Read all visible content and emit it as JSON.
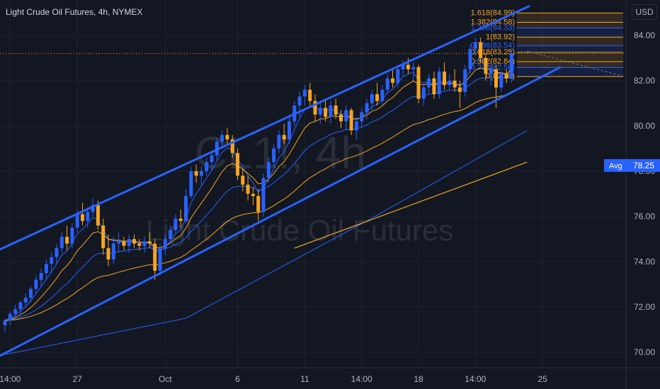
{
  "header": {
    "title": "Light Crude Oil Futures, 4h, NYMEX",
    "currency": "USD"
  },
  "watermark": {
    "symbol": "CL1!, 4h",
    "description": "Light Crude Oil Futures"
  },
  "colors": {
    "background": "#131722",
    "bull_candle": "#2962ff",
    "bear_candle": "#f5a623",
    "channel": "#2962ff",
    "ema_fast": "#2962ff",
    "ema_slow": "#f5a623",
    "fib_line": "#f5a623",
    "avg_label": "#2962ff"
  },
  "price_axis": {
    "ticks": [
      "84.00",
      "82.00",
      "80.00",
      "78.00",
      "76.00",
      "74.00",
      "72.00",
      "70.00"
    ],
    "avg_label": "Avg",
    "avg_value": "78.25"
  },
  "fib_levels": [
    {
      "label": "1.618(84.99)",
      "price": 84.99,
      "color": "#f5a623"
    },
    {
      "label": "1.382(84.58)",
      "price": 84.58,
      "color": "#f5a623"
    },
    {
      "label": "1.236(84.33)",
      "price": 84.33,
      "color": "#2962ff"
    },
    {
      "label": "1(83.92)",
      "price": 83.92,
      "color": "#f5a623"
    },
    {
      "label": "0.786(83.54)",
      "price": 83.54,
      "color": "#2962ff"
    },
    {
      "label": "0.618(83.25)",
      "price": 83.25,
      "color": "#f5a623"
    },
    {
      "label": "0.382(82.84)",
      "price": 82.84,
      "color": "#f5a623"
    },
    {
      "label": "0.236(82.58)",
      "price": 82.58,
      "color": "#2962ff"
    },
    {
      "label": "0(82.18)",
      "price": 82.18,
      "color": "#f5a623"
    }
  ],
  "chart_data": {
    "type": "candlestick",
    "title": "Light Crude Oil Futures, 4h, NYMEX",
    "ylim": [
      69.4,
      85.3
    ],
    "x_ticks": [
      {
        "label": "14:00",
        "index": 1
      },
      {
        "label": "27",
        "index": 14
      },
      {
        "label": "Oct",
        "index": 31
      },
      {
        "label": "6",
        "index": 45
      },
      {
        "label": "11",
        "index": 58
      },
      {
        "label": "14:00",
        "index": 69
      },
      {
        "label": "18",
        "index": 80
      },
      {
        "label": "14:00",
        "index": 91
      },
      {
        "label": "25",
        "index": 104
      }
    ],
    "candles": [
      [
        71.2,
        71.5,
        70.9,
        71.4
      ],
      [
        71.4,
        71.8,
        71.2,
        71.7
      ],
      [
        71.7,
        72.1,
        71.5,
        71.9
      ],
      [
        71.9,
        72.3,
        71.6,
        72.2
      ],
      [
        72.2,
        72.6,
        72.0,
        72.4
      ],
      [
        72.4,
        72.9,
        72.2,
        72.8
      ],
      [
        72.8,
        73.4,
        72.6,
        73.2
      ],
      [
        73.2,
        73.7,
        72.9,
        73.5
      ],
      [
        73.5,
        74.1,
        73.2,
        73.9
      ],
      [
        73.9,
        74.4,
        73.5,
        74.2
      ],
      [
        74.2,
        74.8,
        73.9,
        74.6
      ],
      [
        74.6,
        75.3,
        74.4,
        75.1
      ],
      [
        75.1,
        75.6,
        74.5,
        74.8
      ],
      [
        74.8,
        75.7,
        74.6,
        75.5
      ],
      [
        75.5,
        76.3,
        75.3,
        76.1
      ],
      [
        76.1,
        76.6,
        75.6,
        75.8
      ],
      [
        75.8,
        76.4,
        75.5,
        76.2
      ],
      [
        76.2,
        76.8,
        76.0,
        76.5
      ],
      [
        76.5,
        76.7,
        75.4,
        75.6
      ],
      [
        75.6,
        75.9,
        74.3,
        74.6
      ],
      [
        74.6,
        75.2,
        73.8,
        74.1
      ],
      [
        74.1,
        75.1,
        73.9,
        74.8
      ],
      [
        74.8,
        75.3,
        74.4,
        74.9
      ],
      [
        74.9,
        75.1,
        74.5,
        74.7
      ],
      [
        74.7,
        75.2,
        74.4,
        75.0
      ],
      [
        75.0,
        75.2,
        74.6,
        74.8
      ],
      [
        74.8,
        75.0,
        74.5,
        74.7
      ],
      [
        74.7,
        75.1,
        74.4,
        74.9
      ],
      [
        74.9,
        75.3,
        74.6,
        74.8
      ],
      [
        74.8,
        75.0,
        73.2,
        73.6
      ],
      [
        73.6,
        74.8,
        73.4,
        74.6
      ],
      [
        74.6,
        75.2,
        74.3,
        75.0
      ],
      [
        75.0,
        75.6,
        74.8,
        75.4
      ],
      [
        75.4,
        76.1,
        75.2,
        75.9
      ],
      [
        75.9,
        76.3,
        75.5,
        75.8
      ],
      [
        75.8,
        77.2,
        75.7,
        76.9
      ],
      [
        76.9,
        78.2,
        76.8,
        78.0
      ],
      [
        78.0,
        78.3,
        77.5,
        77.8
      ],
      [
        77.8,
        78.2,
        77.4,
        78.0
      ],
      [
        78.0,
        78.6,
        77.8,
        78.4
      ],
      [
        78.4,
        78.9,
        78.0,
        78.7
      ],
      [
        78.7,
        79.5,
        78.5,
        79.3
      ],
      [
        79.3,
        79.8,
        79.0,
        79.6
      ],
      [
        79.6,
        79.9,
        79.2,
        79.4
      ],
      [
        79.4,
        79.6,
        78.6,
        78.8
      ],
      [
        78.8,
        79.0,
        77.6,
        77.8
      ],
      [
        77.8,
        78.1,
        77.1,
        77.4
      ],
      [
        77.4,
        77.8,
        76.7,
        77.0
      ],
      [
        77.0,
        77.3,
        76.5,
        76.9
      ],
      [
        76.9,
        77.2,
        75.8,
        76.2
      ],
      [
        76.2,
        77.9,
        76.0,
        77.7
      ],
      [
        77.7,
        78.6,
        77.5,
        78.4
      ],
      [
        78.4,
        79.2,
        78.2,
        79.0
      ],
      [
        79.0,
        79.8,
        78.8,
        79.6
      ],
      [
        79.6,
        80.1,
        79.2,
        79.4
      ],
      [
        79.4,
        80.5,
        79.2,
        80.2
      ],
      [
        80.2,
        81.1,
        80.0,
        80.9
      ],
      [
        80.9,
        81.5,
        80.4,
        81.3
      ],
      [
        81.3,
        81.8,
        80.9,
        81.6
      ],
      [
        81.6,
        81.9,
        80.9,
        81.1
      ],
      [
        81.1,
        81.4,
        80.2,
        80.5
      ],
      [
        80.5,
        81.0,
        80.1,
        80.8
      ],
      [
        80.8,
        81.2,
        80.2,
        80.4
      ],
      [
        80.4,
        81.1,
        80.1,
        80.9
      ],
      [
        80.9,
        81.2,
        80.3,
        80.5
      ],
      [
        80.5,
        80.7,
        79.9,
        80.2
      ],
      [
        80.2,
        80.9,
        79.8,
        80.7
      ],
      [
        80.7,
        80.8,
        79.6,
        79.8
      ],
      [
        79.8,
        80.4,
        79.4,
        80.2
      ],
      [
        80.2,
        80.8,
        79.9,
        80.6
      ],
      [
        80.6,
        81.2,
        80.3,
        81.0
      ],
      [
        81.0,
        81.6,
        80.7,
        81.4
      ],
      [
        81.4,
        81.9,
        80.9,
        81.1
      ],
      [
        81.1,
        81.8,
        80.9,
        81.6
      ],
      [
        81.6,
        82.3,
        81.4,
        82.1
      ],
      [
        82.1,
        82.5,
        81.7,
        81.9
      ],
      [
        81.9,
        82.7,
        81.7,
        82.5
      ],
      [
        82.5,
        82.9,
        82.2,
        82.7
      ],
      [
        82.7,
        83.0,
        82.3,
        82.5
      ],
      [
        82.5,
        82.8,
        82.0,
        82.6
      ],
      [
        82.6,
        82.7,
        81.0,
        81.2
      ],
      [
        81.2,
        81.9,
        80.9,
        81.7
      ],
      [
        81.7,
        82.3,
        81.4,
        82.1
      ],
      [
        82.1,
        82.4,
        81.2,
        81.4
      ],
      [
        81.4,
        82.6,
        81.2,
        82.4
      ],
      [
        82.4,
        82.8,
        81.6,
        81.8
      ],
      [
        81.8,
        82.3,
        81.6,
        82.0
      ],
      [
        82.0,
        82.5,
        81.5,
        81.7
      ],
      [
        81.7,
        82.0,
        80.8,
        81.5
      ],
      [
        81.5,
        82.7,
        81.3,
        82.5
      ],
      [
        82.5,
        83.6,
        82.3,
        83.4
      ],
      [
        83.4,
        83.9,
        83.1,
        83.7
      ],
      [
        83.7,
        83.9,
        82.8,
        83.0
      ],
      [
        83.0,
        83.2,
        82.0,
        82.3
      ],
      [
        82.3,
        82.6,
        81.8,
        82.5
      ],
      [
        82.5,
        82.7,
        80.8,
        81.7
      ],
      [
        81.7,
        82.4,
        81.5,
        82.3
      ],
      [
        82.3,
        82.5,
        81.9,
        82.1
      ],
      [
        82.1,
        83.4,
        81.9,
        83.2
      ]
    ],
    "channel_upper": [
      {
        "index": -1,
        "price": 74.54
      },
      {
        "index": 101.5,
        "price": 85.3
      }
    ],
    "channel_lower": [
      {
        "index": -1,
        "price": 69.84
      },
      {
        "index": 107.5,
        "price": 82.6
      }
    ],
    "avg_line": [
      {
        "index": 56,
        "price": 74.6
      },
      {
        "index": 101,
        "price": 78.4
      }
    ],
    "ema_long": [
      {
        "index": 0,
        "price": 69.9
      },
      {
        "index": 35,
        "price": 71.5
      },
      {
        "index": 70,
        "price": 75.8
      },
      {
        "index": 101,
        "price": 79.8
      }
    ]
  }
}
